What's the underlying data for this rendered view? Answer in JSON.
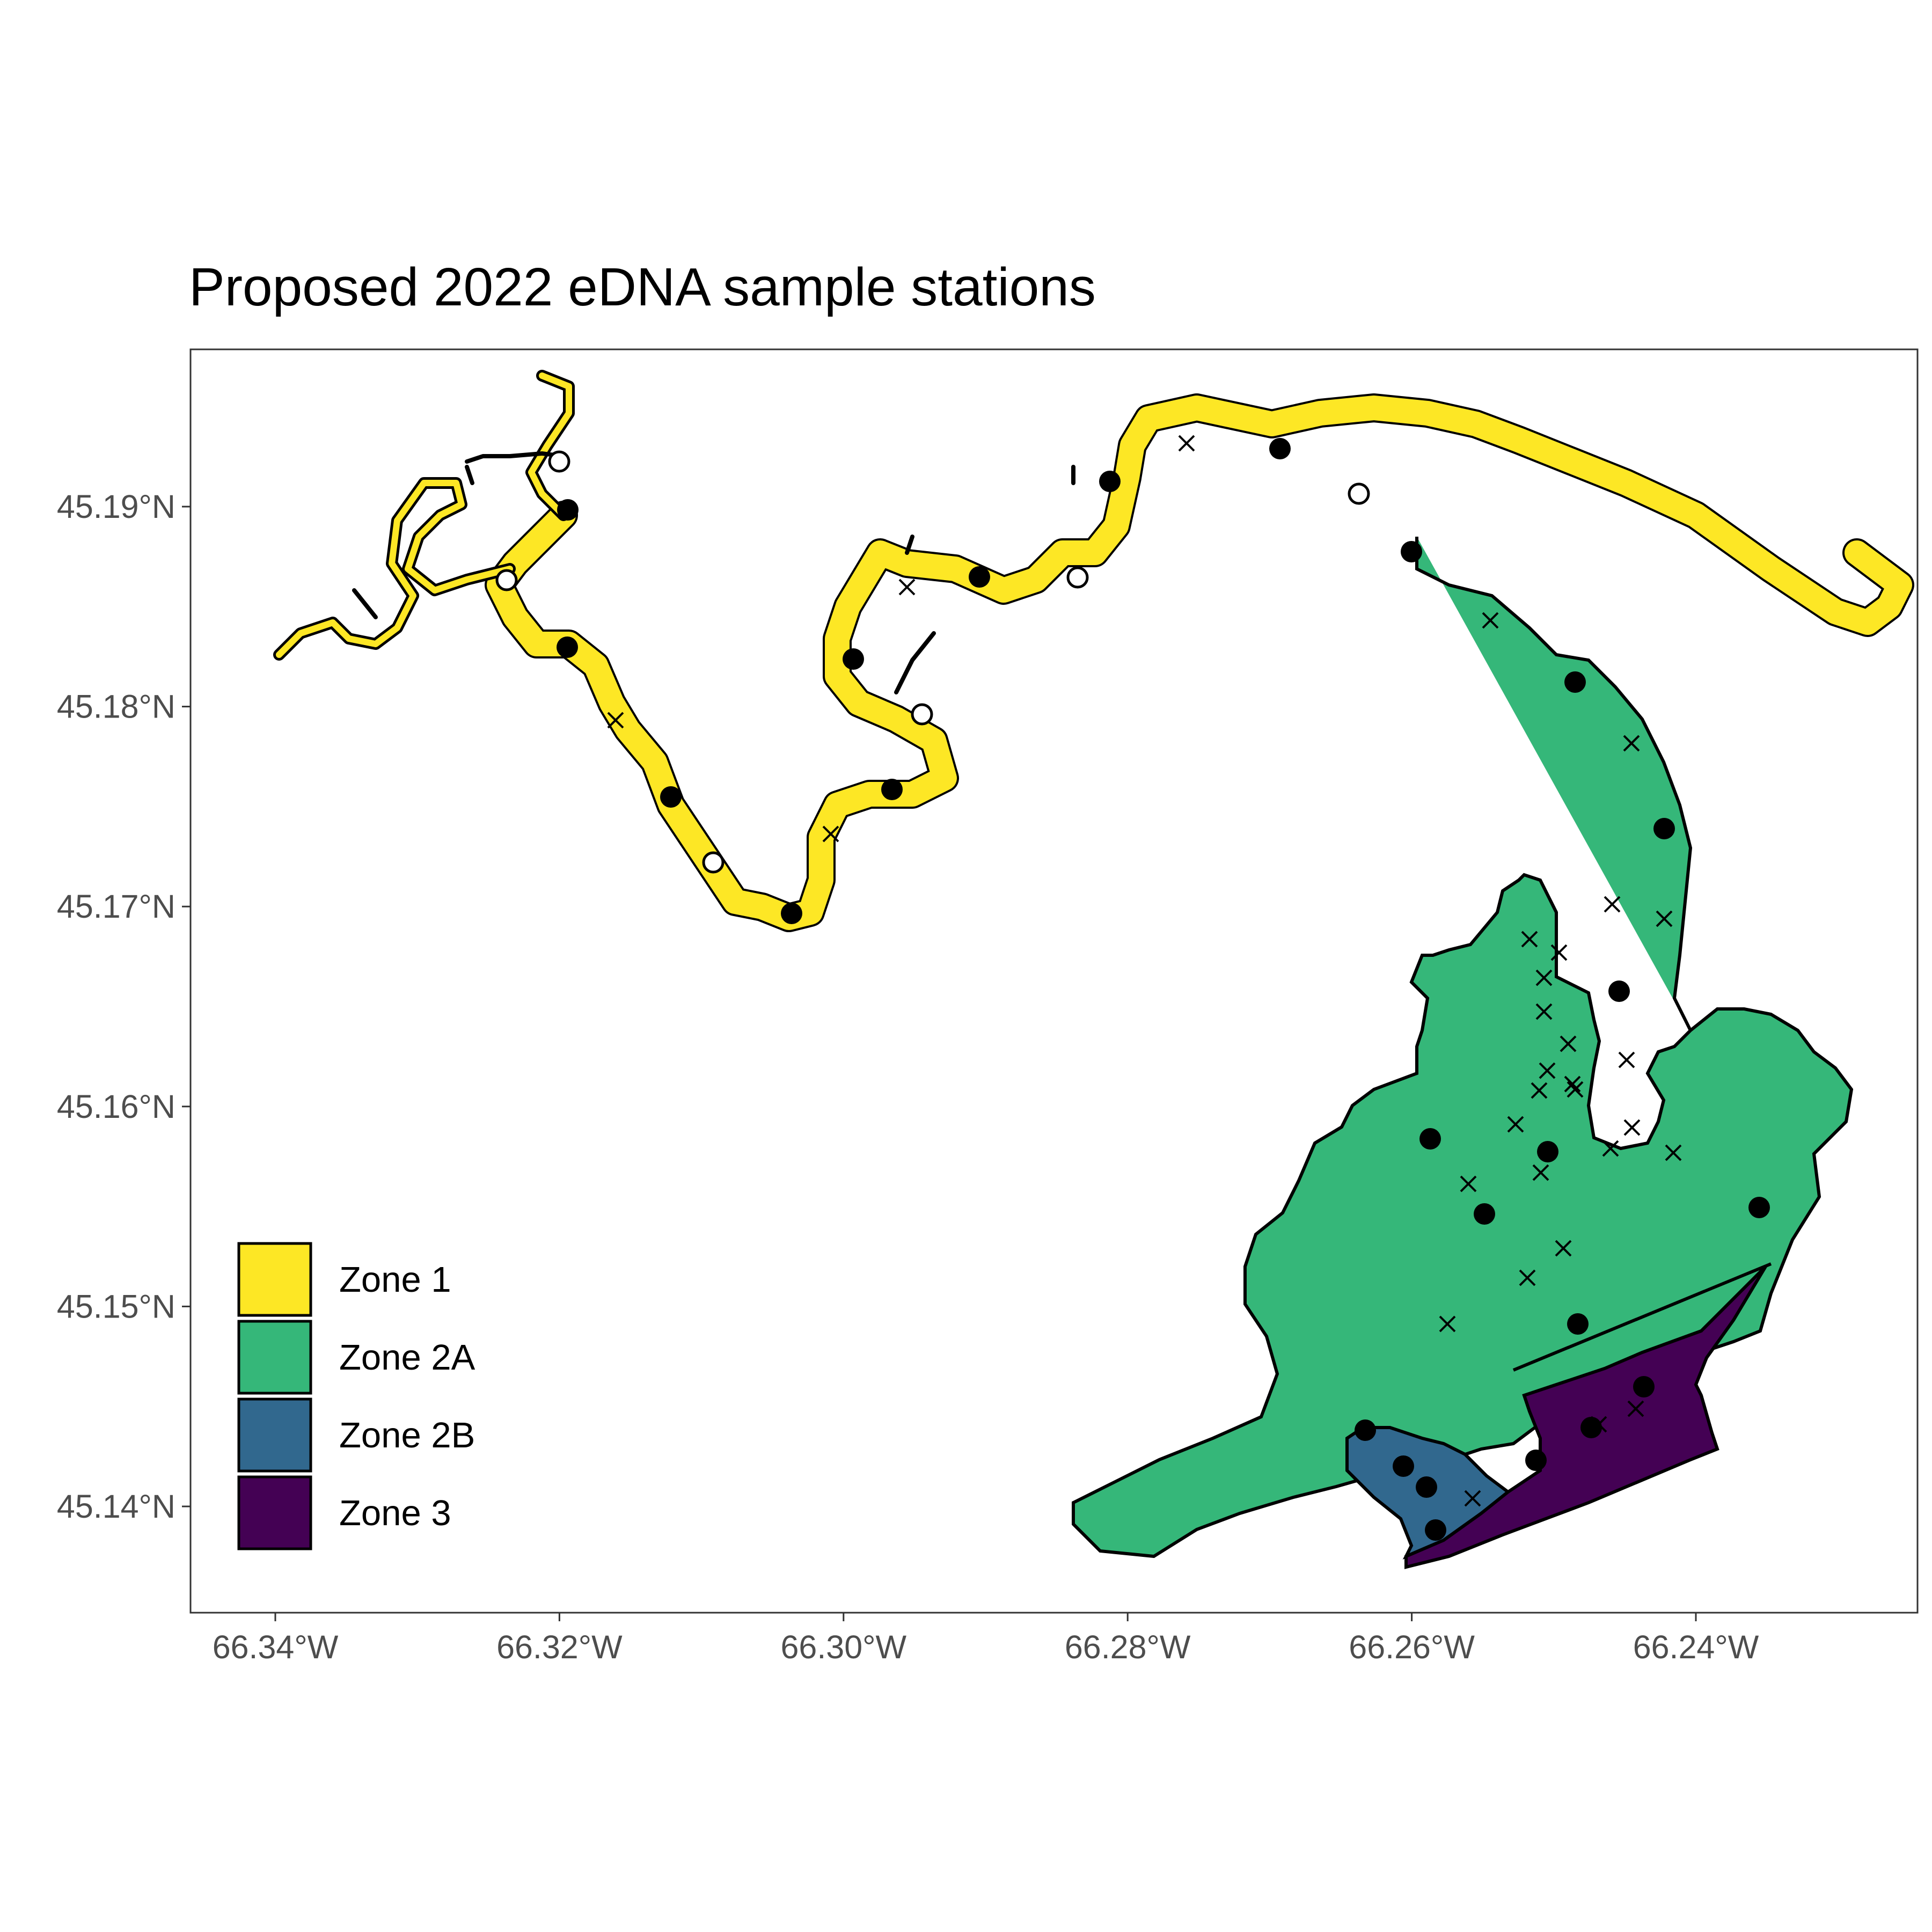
{
  "title": "Proposed 2022 eDNA sample stations",
  "map": {
    "x_axis": {
      "ticks": [
        {
          "value": -66.34,
          "label": "66.34°W"
        },
        {
          "value": -66.32,
          "label": "66.32°W"
        },
        {
          "value": -66.3,
          "label": "66.30°W"
        },
        {
          "value": -66.28,
          "label": "66.28°W"
        },
        {
          "value": -66.26,
          "label": "66.26°W"
        },
        {
          "value": -66.24,
          "label": "66.24°W"
        }
      ]
    },
    "y_axis": {
      "ticks": [
        {
          "value": 45.14,
          "label": "45.14°N"
        },
        {
          "value": 45.15,
          "label": "45.15°N"
        },
        {
          "value": 45.16,
          "label": "45.16°N"
        },
        {
          "value": 45.17,
          "label": "45.17°N"
        },
        {
          "value": 45.18,
          "label": "45.18°N"
        },
        {
          "value": 45.19,
          "label": "45.19°N"
        }
      ]
    },
    "legend": {
      "position": "bottom-left",
      "entries": [
        {
          "label": "Zone 1",
          "color": "#FDE725"
        },
        {
          "label": "Zone 2A",
          "color": "#35B779"
        },
        {
          "label": "Zone 2B",
          "color": "#31688E"
        },
        {
          "label": "Zone 3",
          "color": "#440154"
        }
      ]
    }
  }
}
